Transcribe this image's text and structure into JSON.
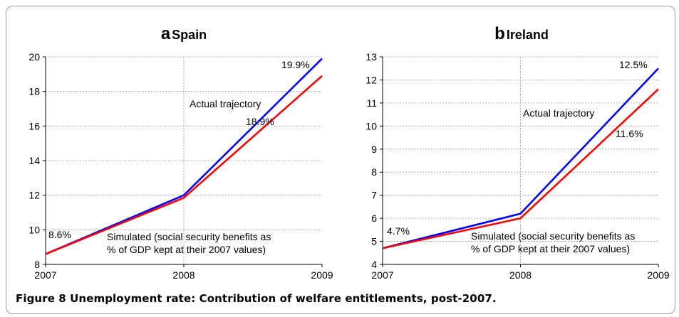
{
  "caption": "Figure 8 Unemployment rate: Contribution of welfare entitlements, post-2007.",
  "chart_data": [
    {
      "type": "line",
      "panel_letter": "a",
      "title": "Spain",
      "x": [
        "2007",
        "2008",
        "2009"
      ],
      "ylim": [
        8,
        20
      ],
      "yticks": [
        "8",
        "10",
        "12",
        "14",
        "16",
        "18",
        "20"
      ],
      "grid": true,
      "series": [
        {
          "name": "Actual trajectory",
          "color": "#0000ff",
          "values": [
            8.6,
            12.0,
            19.9
          ]
        },
        {
          "name": "Simulated (social security benefits as % of GDP kept at their 2007 values)",
          "color": "#ff0000",
          "values": [
            8.6,
            11.85,
            18.9
          ]
        }
      ],
      "annotations": {
        "start": "8.6%",
        "actual_end": "19.9%",
        "simulated_end": "18.9%",
        "actual_label": "Actual trajectory",
        "simulated_label_1": "Simulated (social security benefits as",
        "simulated_label_2": "% of GDP kept at their 2007 values)"
      }
    },
    {
      "type": "line",
      "panel_letter": "b",
      "title": "Ireland",
      "x": [
        "2007",
        "2008",
        "2009"
      ],
      "ylim": [
        4,
        13
      ],
      "yticks": [
        "4",
        "5",
        "6",
        "7",
        "8",
        "9",
        "10",
        "11",
        "12",
        "13"
      ],
      "grid": true,
      "series": [
        {
          "name": "Actual trajectory",
          "color": "#0000ff",
          "values": [
            4.7,
            6.2,
            12.5
          ]
        },
        {
          "name": "Simulated (social security benefits as % of GDP kept at their 2007 values)",
          "color": "#ff0000",
          "values": [
            4.7,
            6.0,
            11.6
          ]
        }
      ],
      "annotations": {
        "start": "4.7%",
        "actual_end": "12.5%",
        "simulated_end": "11.6%",
        "actual_label": "Actual trajectory",
        "simulated_label_1": "Simulated (social security benefits as",
        "simulated_label_2": "% of GDP kept at their 2007 values)"
      }
    }
  ]
}
